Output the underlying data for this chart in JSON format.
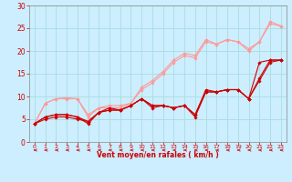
{
  "background_color": "#cceeff",
  "grid_color": "#aadddd",
  "xlabel": "Vent moyen/en rafales ( km/h )",
  "xlabel_color": "#cc0000",
  "tick_color": "#cc0000",
  "xlim": [
    -0.5,
    23.5
  ],
  "ylim": [
    0,
    30
  ],
  "xticks": [
    0,
    1,
    2,
    3,
    4,
    5,
    6,
    7,
    8,
    9,
    10,
    11,
    12,
    13,
    14,
    15,
    16,
    17,
    18,
    19,
    20,
    21,
    22,
    23
  ],
  "yticks": [
    0,
    5,
    10,
    15,
    20,
    25,
    30
  ],
  "series_light": [
    [
      4.0,
      8.5,
      9.5,
      9.7,
      9.5,
      6.0,
      7.5,
      8.0,
      8.0,
      8.5,
      12.0,
      13.5,
      15.5,
      18.0,
      19.5,
      19.0,
      22.5,
      21.5,
      22.5,
      22.0,
      20.5,
      22.0,
      26.5,
      25.5
    ],
    [
      4.0,
      8.5,
      9.5,
      9.5,
      9.5,
      5.5,
      7.5,
      7.5,
      7.5,
      8.5,
      11.5,
      13.0,
      15.0,
      17.5,
      19.0,
      18.5,
      22.0,
      21.5,
      22.5,
      22.0,
      20.0,
      22.0,
      26.0,
      25.5
    ]
  ],
  "series_dark": [
    [
      4.0,
      5.5,
      6.0,
      6.0,
      5.5,
      4.5,
      6.5,
      7.5,
      7.0,
      8.0,
      9.5,
      8.0,
      8.0,
      7.5,
      8.0,
      6.0,
      11.5,
      11.0,
      11.5,
      11.5,
      9.5,
      17.5,
      18.0,
      18.0
    ],
    [
      4.0,
      5.5,
      6.0,
      6.0,
      5.5,
      4.0,
      6.5,
      7.0,
      7.0,
      8.0,
      9.5,
      8.0,
      8.0,
      7.5,
      8.0,
      6.0,
      11.0,
      11.0,
      11.5,
      11.5,
      9.5,
      14.0,
      18.0,
      18.0
    ],
    [
      4.0,
      5.0,
      5.5,
      5.5,
      5.0,
      4.5,
      6.5,
      7.0,
      7.0,
      8.0,
      9.5,
      7.5,
      8.0,
      7.5,
      8.0,
      5.5,
      11.0,
      11.0,
      11.5,
      11.5,
      9.5,
      13.5,
      17.5,
      18.0
    ]
  ],
  "light_color": "#ff9999",
  "dark_color": "#cc0000",
  "marker": "D",
  "marker_size": 1.8,
  "spine_color": "#888888"
}
